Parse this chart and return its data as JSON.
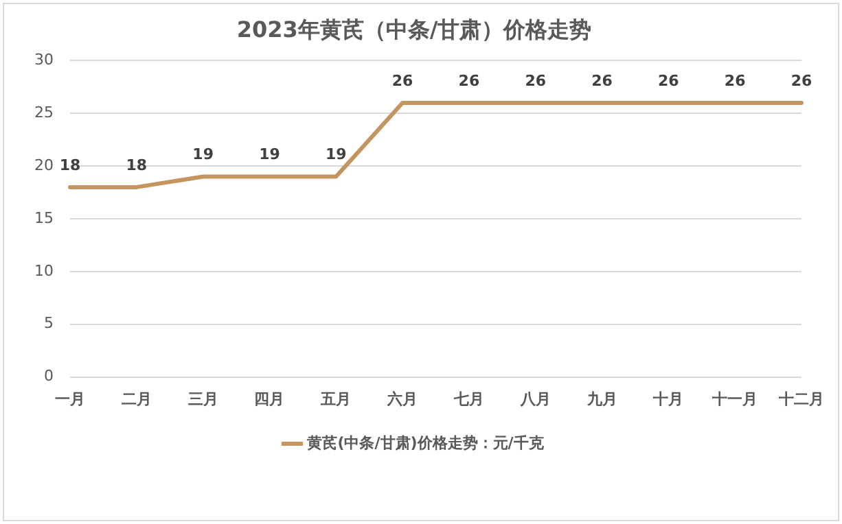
{
  "chart_data": {
    "type": "line",
    "title": "2023年黄芪（中条/甘肃）价格走势",
    "categories": [
      "一月",
      "二月",
      "三月",
      "四月",
      "五月",
      "六月",
      "七月",
      "八月",
      "九月",
      "十月",
      "十一月",
      "十二月"
    ],
    "series": [
      {
        "name": "黄芪(中条/甘肃)价格走势：元/千克",
        "color": "#c4955f",
        "values": [
          18,
          18,
          19,
          19,
          19,
          26,
          26,
          26,
          26,
          26,
          26,
          26
        ]
      }
    ],
    "ylim": [
      0,
      30
    ],
    "yticks": [
      0,
      5,
      10,
      15,
      20,
      25,
      30
    ],
    "grid": "y",
    "data_labels": true,
    "legend": "bottom",
    "marker": "none",
    "line_style": "solid"
  }
}
